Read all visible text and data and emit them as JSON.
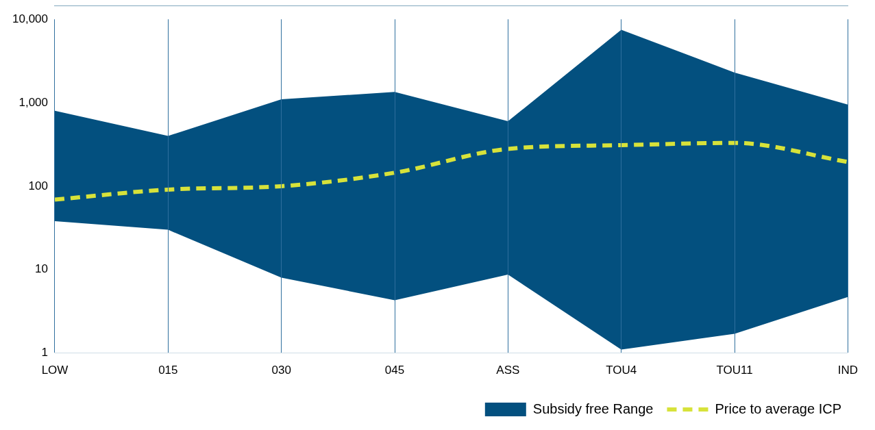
{
  "chart_data": {
    "type": "area",
    "categories": [
      "LOW",
      "015",
      "030",
      "045",
      "ASS",
      "TOU4",
      "TOU11",
      "IND"
    ],
    "series": [
      {
        "type": "area",
        "name": "Subsidy free Range",
        "color": "#03507f",
        "values": [
          800,
          400,
          1100,
          1350,
          600,
          7500,
          2300,
          950
        ]
      },
      {
        "type": "area",
        "color": "#ffffff",
        "values": [
          38,
          30,
          8,
          4.3,
          8.7,
          1.1,
          1.7,
          4.7
        ]
      },
      {
        "type": "line",
        "name": "Price to average ICP",
        "color": "#d7e23a",
        "values": [
          69,
          91,
          100,
          145,
          280,
          310,
          330,
          195
        ],
        "line_style": "dashed"
      }
    ],
    "log": "y",
    "ylim": [
      1,
      10000
    ],
    "yticks": [
      1,
      10,
      100,
      {
        "value": 1000,
        "label": "1,000"
      },
      {
        "value": 10000,
        "label": "10,000"
      }
    ],
    "grid": "x",
    "legend": "bottom right",
    "marker": "none"
  }
}
